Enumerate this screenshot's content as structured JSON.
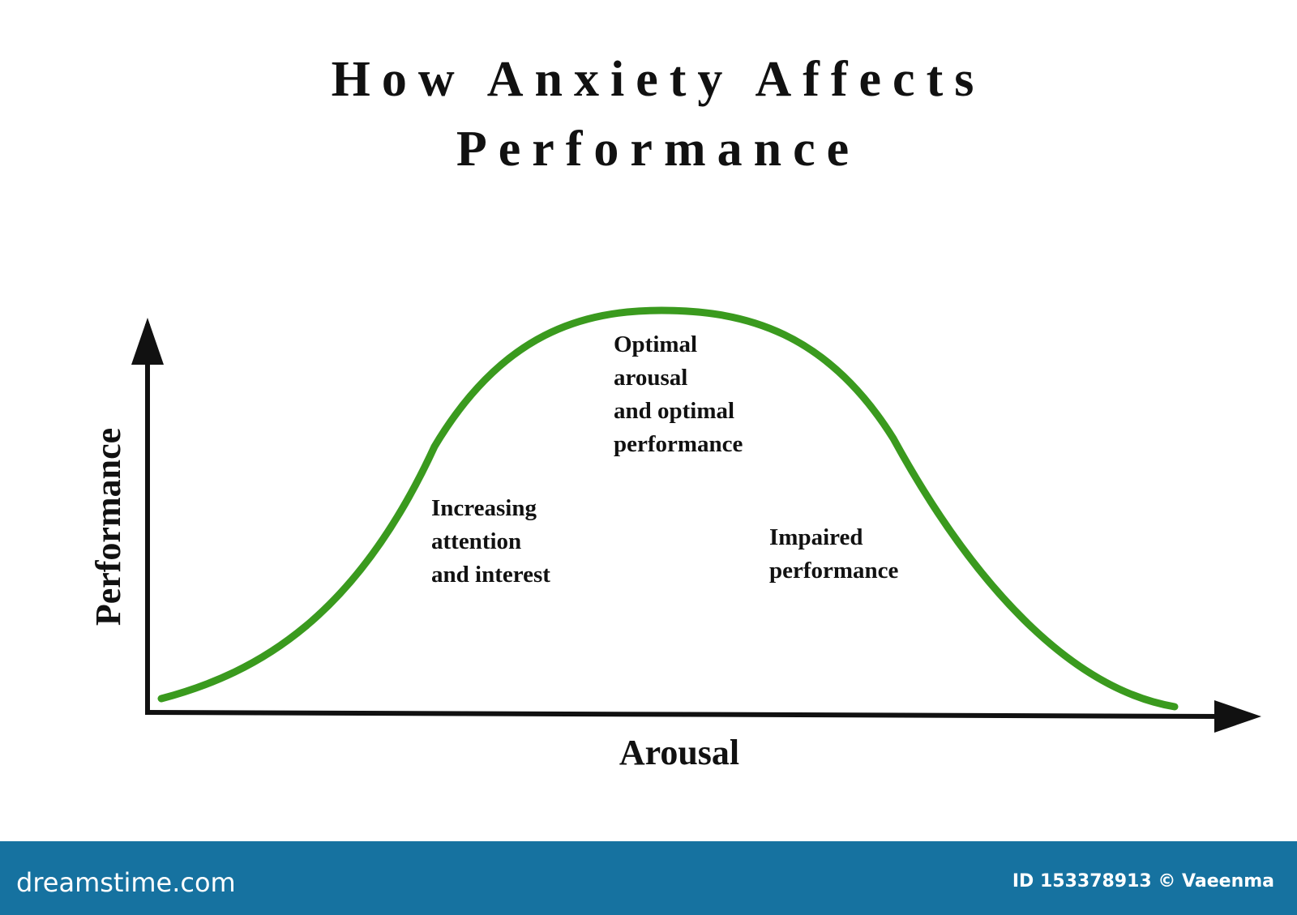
{
  "header": {
    "title_lines": [
      "How Anxiety Affects",
      "Performance"
    ]
  },
  "axes": {
    "y_label": "Performance",
    "x_label": "Arousal"
  },
  "annotations": [
    {
      "lines": [
        "Increasing",
        "attention",
        "and interest"
      ]
    },
    {
      "lines": [
        "Optimal",
        "arousal",
        "and optimal",
        "performance"
      ]
    },
    {
      "lines": [
        "Impaired",
        "performance"
      ]
    }
  ],
  "footer": {
    "brand": "dreamstime.com",
    "credit": "ID 153378913 © Vaeenma"
  }
}
